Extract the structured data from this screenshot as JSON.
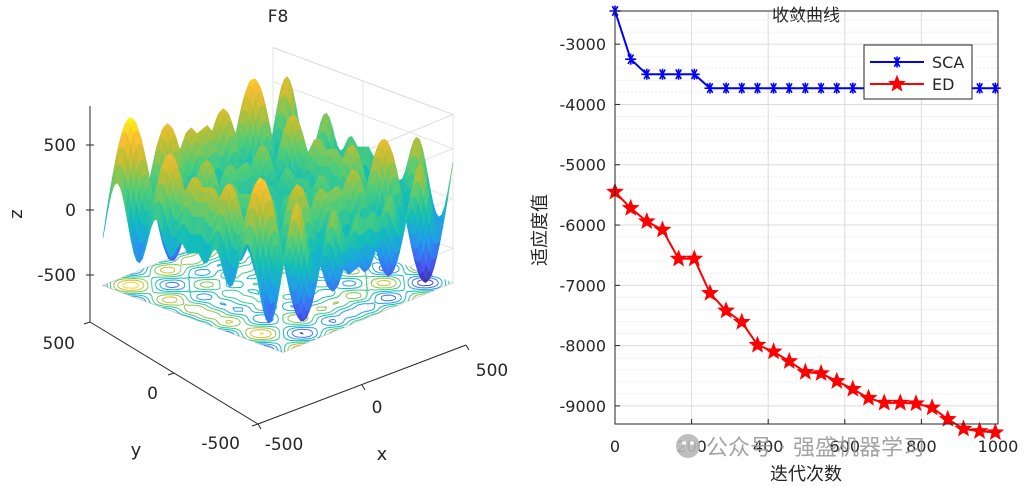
{
  "chart_data": [
    {
      "type": "surface",
      "title": "F8",
      "xlabel": "x",
      "ylabel": "y",
      "zlabel": "z",
      "x_ticks": [
        "-500",
        "0",
        "500"
      ],
      "y_ticks": [
        "500",
        "0",
        "-500"
      ],
      "z_ticks": [
        "500",
        "0",
        "-500"
      ],
      "xlim": [
        -500,
        500
      ],
      "ylim": [
        -500,
        500
      ],
      "zlim": [
        -840,
        840
      ],
      "function": "z = -x*sin(sqrt(|x|)) - y*sin(sqrt(|y|))",
      "colormap": "parula",
      "contour_projection": true
    },
    {
      "type": "line",
      "title": "收敛曲线",
      "xlabel": "迭代次数",
      "ylabel": "适应度值",
      "xlim": [
        0,
        1000
      ],
      "ylim": [
        -9300,
        -2450
      ],
      "x_ticks": [
        "0",
        "200",
        "400",
        "600",
        "800",
        "1000"
      ],
      "y_ticks": [
        "-3000",
        "-4000",
        "-5000",
        "-6000",
        "-7000",
        "-8000",
        "-9000"
      ],
      "grid": true,
      "legend_position": "top-right",
      "x": [
        0,
        41,
        83,
        124,
        166,
        207,
        248,
        290,
        331,
        372,
        414,
        455,
        497,
        538,
        579,
        621,
        662,
        703,
        745,
        786,
        828,
        869,
        910,
        952,
        993
      ],
      "series": [
        {
          "name": "SCA",
          "color": "#0000ff",
          "marker": "asterisk",
          "values": [
            -2450,
            -3250,
            -3500,
            -3500,
            -3500,
            -3500,
            -3730,
            -3730,
            -3730,
            -3730,
            -3730,
            -3730,
            -3730,
            -3730,
            -3730,
            -3730,
            -3730,
            -3730,
            -3730,
            -3730,
            -3730,
            -3730,
            -3730,
            -3730,
            -3730
          ]
        },
        {
          "name": "ED",
          "color": "#ff0000",
          "marker": "pentagram",
          "values": [
            -5450,
            -5720,
            -5940,
            -6080,
            -6560,
            -6560,
            -7130,
            -7420,
            -7610,
            -7990,
            -8100,
            -8260,
            -8440,
            -8460,
            -8590,
            -8720,
            -8870,
            -8950,
            -8950,
            -8960,
            -9030,
            -9220,
            -9380,
            -9420,
            -9440
          ]
        }
      ]
    }
  ],
  "watermark": "公众号 · 强盛机器学习"
}
